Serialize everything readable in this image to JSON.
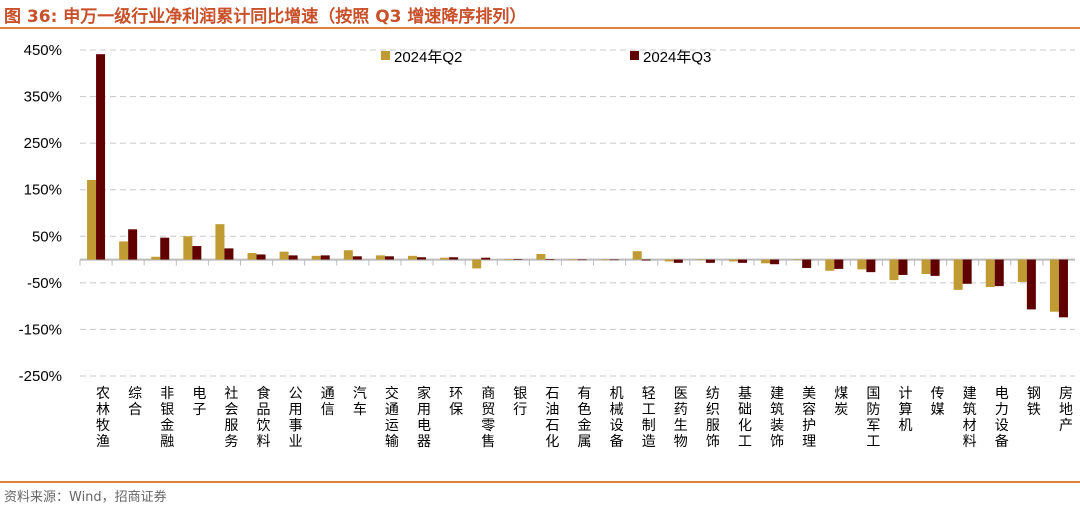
{
  "title": "图 36:  申万一级行业净利润累计同比增速（按照 Q3 增速降序排列）",
  "source": "资料来源：Wind，招商证券",
  "chart_data": {
    "type": "bar",
    "title": "",
    "xlabel": "",
    "ylabel": "",
    "ylim": [
      -250,
      450
    ],
    "yticks": [
      450,
      350,
      250,
      150,
      50,
      -50,
      -150,
      -250
    ],
    "ytick_labels": [
      "450%",
      "350%",
      "250%",
      "150%",
      "50%",
      "-50%",
      "-150%",
      "-250%"
    ],
    "grid": true,
    "legend_placement": "top",
    "categories": [
      "农林牧渔",
      "综合",
      "非银金融",
      "电子",
      "社会服务",
      "食品饮料",
      "公用事业",
      "通信",
      "汽车",
      "交通运输",
      "家用电器",
      "环保",
      "商贸零售",
      "银行",
      "石油石化",
      "有色金属",
      "机械设备",
      "轻工制造",
      "医药生物",
      "纺织服饰",
      "基础化工",
      "建筑装饰",
      "美容护理",
      "煤炭",
      "国防军工",
      "计算机",
      "传媒",
      "建筑材料",
      "电力设备",
      "钢铁",
      "房地产"
    ],
    "series": [
      {
        "name": "2024年Q2",
        "color": "#C09A32",
        "values": [
          171,
          39,
          6,
          50,
          76,
          14,
          17,
          8,
          20,
          9,
          8,
          4,
          -19,
          1,
          12,
          0,
          -1,
          18,
          -4,
          -1,
          -4,
          -8,
          -1,
          -24,
          -21,
          -44,
          -31,
          -65,
          -59,
          -48,
          -112
        ]
      },
      {
        "name": "2024年Q3",
        "color": "#600000",
        "values": [
          441,
          65,
          47,
          29,
          24,
          11,
          9,
          9,
          7,
          7,
          5,
          5,
          4,
          0.5,
          1,
          0,
          0,
          -2,
          -7,
          -7,
          -7,
          -10,
          -18,
          -20,
          -27,
          -33,
          -35,
          -52,
          -57,
          -107,
          -124
        ]
      }
    ]
  }
}
